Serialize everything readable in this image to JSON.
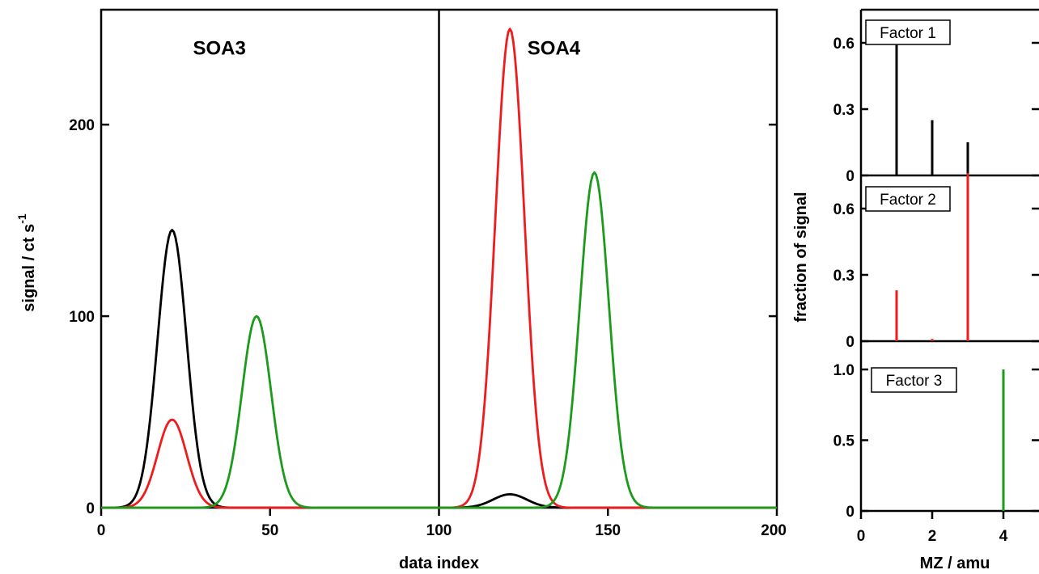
{
  "chart_data": [
    {
      "type": "line",
      "xlabel": "data index",
      "ylabel": "signal / ct s",
      "ylabel_superscript": "-1",
      "xlim": [
        0,
        200
      ],
      "ylim": [
        0,
        260
      ],
      "x_ticks": [
        "0",
        "50",
        "100",
        "150",
        "200"
      ],
      "y_ticks": [
        "0",
        "100",
        "200"
      ],
      "divider_x": 100,
      "annotations": [
        {
          "text": "SOA3",
          "x": 35,
          "y": 240
        },
        {
          "text": "SOA4",
          "x": 134,
          "y": 240
        }
      ],
      "series": [
        {
          "color": "#000000",
          "peaks": [
            {
              "center": 21,
              "height": 145,
              "width": 4.3
            },
            {
              "center": 121,
              "height": 7,
              "width": 5
            }
          ]
        },
        {
          "color": "#ee1c1c",
          "peaks": [
            {
              "center": 21,
              "height": 46,
              "width": 4.3
            },
            {
              "center": 121,
              "height": 250,
              "width": 4.3
            }
          ]
        },
        {
          "color": "#1b9a1b",
          "peaks": [
            {
              "center": 46,
              "height": 100,
              "width": 4.3
            },
            {
              "center": 146,
              "height": 175,
              "width": 4.3
            }
          ]
        }
      ]
    },
    {
      "type": "bar",
      "title": "Factor 1",
      "color": "#000000",
      "ylim": [
        0,
        0.75
      ],
      "y_ticks": [
        {
          "v": 0,
          "t": "0"
        },
        {
          "v": 0.3,
          "t": "0.3"
        },
        {
          "v": 0.6,
          "t": "0.6"
        }
      ],
      "x": [
        1,
        2,
        3
      ],
      "values": [
        0.59,
        0.25,
        0.15
      ]
    },
    {
      "type": "bar",
      "title": "Factor 2",
      "color": "#ee1c1c",
      "ylim": [
        0,
        0.75
      ],
      "y_ticks": [
        {
          "v": 0,
          "t": "0"
        },
        {
          "v": 0.3,
          "t": "0.3"
        },
        {
          "v": 0.6,
          "t": "0.6"
        }
      ],
      "x": [
        1,
        2,
        3
      ],
      "values": [
        0.23,
        0.01,
        0.76
      ]
    },
    {
      "type": "bar",
      "title": "Factor 3",
      "color": "#1b9a1b",
      "ylim": [
        0,
        1.2
      ],
      "y_ticks": [
        {
          "v": 0,
          "t": "0"
        },
        {
          "v": 0.5,
          "t": "0.5"
        },
        {
          "v": 1.0,
          "t": "1.0"
        }
      ],
      "x": [
        4
      ],
      "values": [
        1.0
      ]
    }
  ],
  "right_axes": {
    "xlabel": "MZ / amu",
    "ylabel": "fraction of signal",
    "xlim": [
      0,
      5
    ],
    "x_ticks": [
      {
        "v": 0,
        "t": "0"
      },
      {
        "v": 2,
        "t": "2"
      },
      {
        "v": 4,
        "t": "4"
      }
    ]
  }
}
